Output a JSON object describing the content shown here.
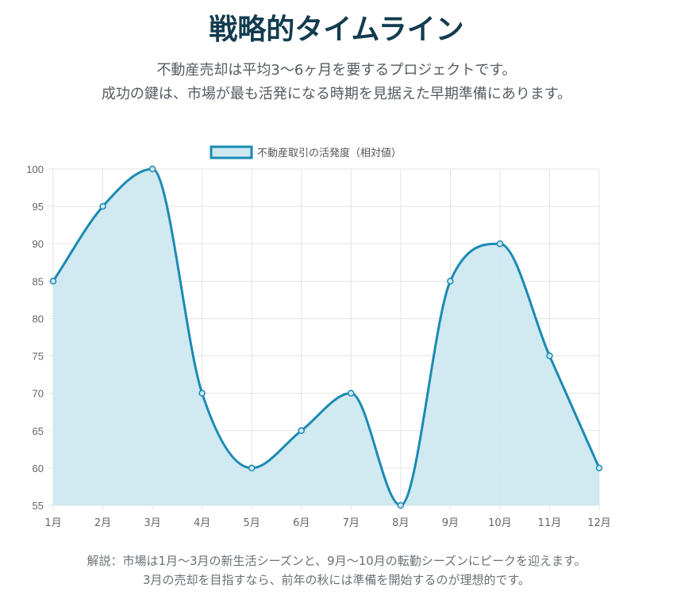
{
  "header": {
    "title": "戦略的タイムライン",
    "subtitle_lines": [
      "不動産売却は平均3〜6ヶ月を要するプロジェクトです。",
      "成功の鍵は、市場が最も活発になる時期を見据えた早期準備にあります。"
    ]
  },
  "chart_data": {
    "type": "area",
    "categories": [
      "1月",
      "2月",
      "3月",
      "4月",
      "5月",
      "6月",
      "7月",
      "8月",
      "9月",
      "10月",
      "11月",
      "12月"
    ],
    "series": [
      {
        "name": "不動産取引の活発度（相対値）",
        "values": [
          85,
          95,
          100,
          70,
          60,
          65,
          70,
          55,
          85,
          90,
          75,
          60
        ]
      }
    ],
    "ylim": [
      55,
      100
    ],
    "yticks": [
      55,
      60,
      65,
      70,
      75,
      80,
      85,
      90,
      95,
      100
    ],
    "grid": true,
    "legend_position": "top",
    "line_color": "#1a8ab3",
    "fill_color": "#cfe8f0"
  },
  "footnote": {
    "lines": [
      "解説：市場は1月〜3月の新生活シーズンと、9月〜10月の転勤シーズンにピークを迎えます。",
      "3月の売却を目指すなら、前年の秋には準備を開始するのが理想的です。"
    ]
  }
}
